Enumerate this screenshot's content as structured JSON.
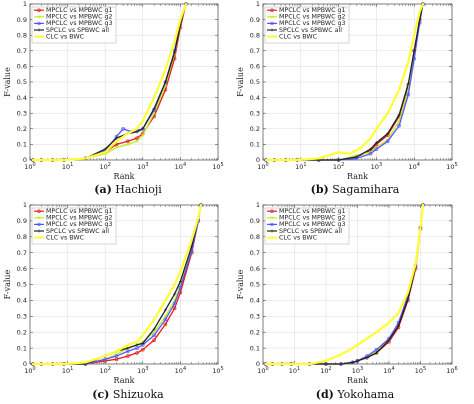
{
  "chart_data": [
    {
      "type": "line",
      "caption_letter": "(a)",
      "caption_name": "Hachioji",
      "xlabel": "Rank",
      "ylabel": "F-value",
      "xscale": "log",
      "xlim": [
        1,
        100000
      ],
      "ylim": [
        0,
        1
      ],
      "x_ticks": [
        "10^0",
        "10^1",
        "10^2",
        "10^3",
        "10^4",
        "10^5"
      ],
      "y_ticks": [
        "0",
        "0.1",
        "0.2",
        "0.3",
        "0.4",
        "0.5",
        "0.6",
        "0.7",
        "0.8",
        "0.9",
        "1"
      ],
      "legend_position": "top-left",
      "series": [
        {
          "name": "MPCLC vs MPBWC g1",
          "color": "#e41a1c",
          "marker": "circle",
          "x": [
            1.2,
            2,
            4,
            8,
            30,
            100,
            200,
            400,
            700,
            1000,
            2000,
            4000,
            7000,
            10000,
            14000
          ],
          "y": [
            0,
            0,
            0,
            0,
            0.01,
            0.05,
            0.1,
            0.12,
            0.14,
            0.17,
            0.28,
            0.45,
            0.65,
            0.85,
            1
          ]
        },
        {
          "name": "MPCLC vs MPBWC g2",
          "color": "#b8f020",
          "marker": "x",
          "x": [
            1.2,
            2,
            4,
            8,
            30,
            100,
            200,
            400,
            700,
            1000,
            2000,
            4000,
            7000,
            10000,
            14000
          ],
          "y": [
            0,
            0,
            0,
            0,
            0.01,
            0.04,
            0.08,
            0.1,
            0.12,
            0.16,
            0.3,
            0.48,
            0.68,
            0.87,
            1
          ]
        },
        {
          "name": "MPCLC vs MPBWC g3",
          "color": "#5555ff",
          "marker": "circle",
          "x": [
            1.2,
            2,
            4,
            8,
            30,
            100,
            200,
            300,
            500,
            700,
            1000,
            2000,
            4000,
            7000,
            10000,
            14000
          ],
          "y": [
            0,
            0,
            0,
            0,
            0.01,
            0.06,
            0.15,
            0.2,
            0.18,
            0.19,
            0.2,
            0.32,
            0.5,
            0.7,
            0.88,
            1
          ]
        },
        {
          "name": "SPCLC vs SPBWC all",
          "color": "#222222",
          "marker": "plus",
          "x": [
            1.2,
            2,
            4,
            8,
            30,
            100,
            200,
            400,
            700,
            1000,
            2000,
            4000,
            7000,
            10000,
            14000
          ],
          "y": [
            0,
            0,
            0,
            0,
            0.01,
            0.07,
            0.14,
            0.17,
            0.18,
            0.2,
            0.33,
            0.5,
            0.69,
            0.87,
            1
          ]
        },
        {
          "name": "CLC vs BWC",
          "color": "#ffff33",
          "marker": "none",
          "x": [
            1.2,
            2,
            4,
            8,
            30,
            100,
            200,
            400,
            700,
            1000,
            2000,
            4000,
            7000,
            10000,
            14000
          ],
          "y": [
            0,
            0,
            0,
            0,
            0.01,
            0.05,
            0.12,
            0.17,
            0.2,
            0.25,
            0.4,
            0.58,
            0.76,
            0.9,
            1
          ]
        }
      ]
    },
    {
      "type": "line",
      "caption_letter": "(b)",
      "caption_name": "Sagamihara",
      "xlabel": "Rank",
      "ylabel": "F-value",
      "xscale": "log",
      "xlim": [
        1,
        100000
      ],
      "ylim": [
        0,
        1
      ],
      "x_ticks": [
        "10^0",
        "10^1",
        "10^2",
        "10^3",
        "10^4",
        "10^5"
      ],
      "y_ticks": [
        "0",
        "0.1",
        "0.2",
        "0.3",
        "0.4",
        "0.5",
        "0.6",
        "0.7",
        "0.8",
        "0.9",
        "1"
      ],
      "legend_position": "top-left",
      "series": [
        {
          "name": "MPCLC vs MPBWC g1",
          "color": "#e41a1c",
          "marker": "circle",
          "x": [
            1.2,
            2,
            4,
            8,
            30,
            100,
            300,
            700,
            1000,
            2000,
            4000,
            7000,
            10000,
            14000,
            17000
          ],
          "y": [
            0,
            0,
            0,
            0,
            0,
            0,
            0.02,
            0.06,
            0.1,
            0.16,
            0.28,
            0.48,
            0.7,
            0.9,
            1
          ]
        },
        {
          "name": "MPCLC vs MPBWC g2",
          "color": "#b8f020",
          "marker": "x",
          "x": [
            1.2,
            2,
            4,
            8,
            30,
            100,
            300,
            700,
            1000,
            2000,
            4000,
            7000,
            10000,
            14000,
            17000
          ],
          "y": [
            0,
            0,
            0,
            0,
            0,
            0,
            0.03,
            0.05,
            0.08,
            0.13,
            0.25,
            0.45,
            0.68,
            0.9,
            1
          ]
        },
        {
          "name": "MPCLC vs MPBWC g3",
          "color": "#5555ff",
          "marker": "circle",
          "x": [
            1.2,
            2,
            4,
            8,
            30,
            100,
            300,
            700,
            1000,
            2000,
            4000,
            7000,
            10000,
            14000,
            17000
          ],
          "y": [
            0,
            0,
            0,
            0,
            0,
            0,
            0.01,
            0.04,
            0.07,
            0.12,
            0.22,
            0.42,
            0.65,
            0.88,
            1
          ]
        },
        {
          "name": "SPCLC vs SPBWC all",
          "color": "#222222",
          "marker": "plus",
          "x": [
            1.2,
            2,
            4,
            8,
            30,
            100,
            300,
            700,
            1000,
            2000,
            4000,
            7000,
            10000,
            14000,
            17000
          ],
          "y": [
            0,
            0,
            0,
            0,
            0,
            0,
            0.02,
            0.07,
            0.11,
            0.17,
            0.29,
            0.49,
            0.7,
            0.9,
            1
          ]
        },
        {
          "name": "CLC vs BWC",
          "color": "#ffff33",
          "marker": "none",
          "x": [
            1.2,
            2,
            4,
            8,
            30,
            100,
            200,
            400,
            700,
            1000,
            2000,
            4000,
            7000,
            10000,
            14000,
            17000
          ],
          "y": [
            0,
            0,
            0,
            0,
            0.01,
            0.05,
            0.04,
            0.08,
            0.14,
            0.2,
            0.3,
            0.45,
            0.63,
            0.8,
            0.95,
            1
          ]
        }
      ]
    },
    {
      "type": "line",
      "caption_letter": "(c)",
      "caption_name": "Shizuoka",
      "xlabel": "Rank",
      "ylabel": "F-value",
      "xscale": "log",
      "xlim": [
        1,
        100000
      ],
      "ylim": [
        0,
        1
      ],
      "x_ticks": [
        "10^0",
        "10^1",
        "10^2",
        "10^3",
        "10^4",
        "10^5"
      ],
      "y_ticks": [
        "0",
        "0.1",
        "0.2",
        "0.3",
        "0.4",
        "0.5",
        "0.6",
        "0.7",
        "0.8",
        "0.9",
        "1"
      ],
      "legend_position": "top-left",
      "series": [
        {
          "name": "MPCLC vs MPBWC g1",
          "color": "#e41a1c",
          "marker": "circle",
          "x": [
            1.2,
            2,
            4,
            8,
            30,
            100,
            200,
            400,
            700,
            1000,
            2000,
            4000,
            7000,
            10000,
            20000,
            30000,
            35000
          ],
          "y": [
            0,
            0,
            0,
            0,
            0,
            0.02,
            0.03,
            0.05,
            0.07,
            0.09,
            0.15,
            0.25,
            0.35,
            0.45,
            0.7,
            0.9,
            1
          ]
        },
        {
          "name": "MPCLC vs MPBWC g2",
          "color": "#b8f020",
          "marker": "x",
          "x": [
            1.2,
            2,
            4,
            8,
            30,
            100,
            200,
            400,
            700,
            1000,
            2000,
            4000,
            7000,
            10000,
            20000,
            30000,
            35000
          ],
          "y": [
            0,
            0,
            0,
            0,
            0,
            0.03,
            0.06,
            0.1,
            0.12,
            0.14,
            0.2,
            0.3,
            0.4,
            0.5,
            0.72,
            0.9,
            1
          ]
        },
        {
          "name": "MPCLC vs MPBWC g3",
          "color": "#5555ff",
          "marker": "circle",
          "x": [
            1.2,
            2,
            4,
            8,
            30,
            100,
            200,
            400,
            700,
            1000,
            2000,
            4000,
            7000,
            10000,
            20000,
            30000,
            35000
          ],
          "y": [
            0,
            0,
            0,
            0,
            0,
            0.03,
            0.05,
            0.08,
            0.1,
            0.12,
            0.18,
            0.28,
            0.38,
            0.48,
            0.71,
            0.9,
            1
          ]
        },
        {
          "name": "SPCLC vs SPBWC all",
          "color": "#222222",
          "marker": "plus",
          "x": [
            1.2,
            2,
            4,
            8,
            30,
            100,
            200,
            400,
            700,
            1000,
            2000,
            4000,
            7000,
            10000,
            20000,
            30000,
            35000
          ],
          "y": [
            0,
            0,
            0,
            0,
            0,
            0.05,
            0.08,
            0.1,
            0.12,
            0.13,
            0.22,
            0.34,
            0.44,
            0.52,
            0.74,
            0.91,
            1
          ]
        },
        {
          "name": "CLC vs BWC",
          "color": "#ffff33",
          "marker": "none",
          "x": [
            1.2,
            2,
            4,
            8,
            30,
            100,
            200,
            400,
            700,
            1000,
            2000,
            4000,
            7000,
            10000,
            20000,
            30000,
            35000
          ],
          "y": [
            0,
            0,
            0,
            0,
            0.01,
            0.05,
            0.08,
            0.12,
            0.14,
            0.18,
            0.28,
            0.4,
            0.5,
            0.58,
            0.78,
            0.92,
            1
          ]
        }
      ]
    },
    {
      "type": "line",
      "caption_letter": "(d)",
      "caption_name": "Yokohama",
      "xlabel": "Rank",
      "ylabel": "F-value",
      "xscale": "log",
      "xlim": [
        1,
        1000000
      ],
      "ylim": [
        0,
        1
      ],
      "x_ticks": [
        "10^0",
        "10^1",
        "10^2",
        "10^3",
        "10^4",
        "10^5",
        "10^6"
      ],
      "y_ticks": [
        "0",
        "0.1",
        "0.2",
        "0.3",
        "0.4",
        "0.5",
        "0.6",
        "0.7",
        "0.8",
        "0.9",
        "1"
      ],
      "legend_position": "top-left",
      "series": [
        {
          "name": "MPCLC vs MPBWC g1",
          "color": "#e41a1c",
          "marker": "circle",
          "x": [
            1.2,
            2,
            4,
            8,
            30,
            100,
            300,
            700,
            1000,
            2000,
            4000,
            10000,
            20000,
            40000,
            70000,
            100000,
            120000
          ],
          "y": [
            0,
            0,
            0,
            0,
            0,
            0,
            0,
            0.01,
            0.02,
            0.04,
            0.07,
            0.14,
            0.23,
            0.4,
            0.6,
            0.85,
            1
          ]
        },
        {
          "name": "MPCLC vs MPBWC g2",
          "color": "#b8f020",
          "marker": "x",
          "x": [
            1.2,
            2,
            4,
            8,
            30,
            100,
            300,
            700,
            1000,
            2000,
            4000,
            10000,
            20000,
            40000,
            70000,
            100000,
            120000
          ],
          "y": [
            0,
            0,
            0,
            0,
            0,
            0,
            0,
            0.01,
            0.02,
            0.04,
            0.08,
            0.15,
            0.25,
            0.42,
            0.62,
            0.86,
            1
          ]
        },
        {
          "name": "MPCLC vs MPBWC g3",
          "color": "#5555ff",
          "marker": "circle",
          "x": [
            1.2,
            2,
            4,
            8,
            30,
            100,
            300,
            700,
            1000,
            2000,
            4000,
            10000,
            20000,
            40000,
            70000,
            100000,
            120000
          ],
          "y": [
            0,
            0,
            0,
            0,
            0,
            0,
            0,
            0.01,
            0.02,
            0.05,
            0.09,
            0.16,
            0.26,
            0.43,
            0.62,
            0.86,
            1
          ]
        },
        {
          "name": "SPCLC vs SPBWC all",
          "color": "#222222",
          "marker": "plus",
          "x": [
            1.2,
            2,
            4,
            8,
            30,
            100,
            300,
            700,
            1000,
            2000,
            4000,
            10000,
            20000,
            40000,
            70000,
            100000,
            120000
          ],
          "y": [
            0,
            0,
            0,
            0,
            0,
            0,
            0,
            0.01,
            0.02,
            0.04,
            0.07,
            0.15,
            0.24,
            0.41,
            0.61,
            0.86,
            1
          ]
        },
        {
          "name": "CLC vs BWC",
          "color": "#ffff33",
          "marker": "none",
          "x": [
            1.2,
            2,
            4,
            8,
            30,
            100,
            300,
            700,
            1000,
            2000,
            4000,
            10000,
            20000,
            40000,
            70000,
            100000,
            120000
          ],
          "y": [
            0,
            0,
            0,
            0,
            0,
            0.02,
            0.06,
            0.1,
            0.12,
            0.16,
            0.2,
            0.26,
            0.32,
            0.45,
            0.63,
            0.86,
            1
          ]
        }
      ]
    }
  ]
}
